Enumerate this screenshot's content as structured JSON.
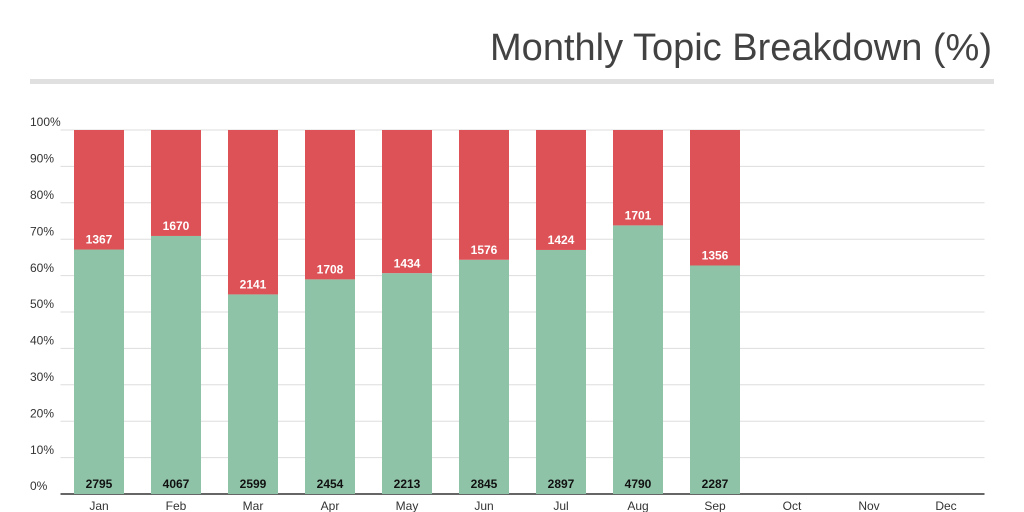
{
  "chart_data": {
    "type": "bar",
    "stacking": "percent",
    "title": "Monthly Topic Breakdown (%)",
    "categories": [
      "Jan",
      "Feb",
      "Mar",
      "Apr",
      "May",
      "Jun",
      "Jul",
      "Aug",
      "Sep",
      "Oct",
      "Nov",
      "Dec"
    ],
    "series": [
      {
        "color": "#8fc3a8",
        "values": [
          2795,
          4067,
          2599,
          2454,
          2213,
          2845,
          2897,
          4790,
          2287,
          null,
          null,
          null
        ]
      },
      {
        "color": "#dc5257",
        "values": [
          1367,
          1670,
          2141,
          1708,
          1434,
          1576,
          1424,
          1701,
          1356,
          null,
          null,
          null
        ]
      }
    ],
    "ylim": [
      0,
      100
    ],
    "yticks": [
      {
        "value": 0,
        "label": "0%"
      },
      {
        "value": 10,
        "label": "10%"
      },
      {
        "value": 20,
        "label": "20%"
      },
      {
        "value": 30,
        "label": "30%"
      },
      {
        "value": 40,
        "label": "40%"
      },
      {
        "value": 50,
        "label": "50%"
      },
      {
        "value": 60,
        "label": "60%"
      },
      {
        "value": 70,
        "label": "70%"
      },
      {
        "value": 80,
        "label": "80%"
      },
      {
        "value": 90,
        "label": "90%"
      },
      {
        "value": 100,
        "label": "100%"
      }
    ],
    "grid": true
  }
}
